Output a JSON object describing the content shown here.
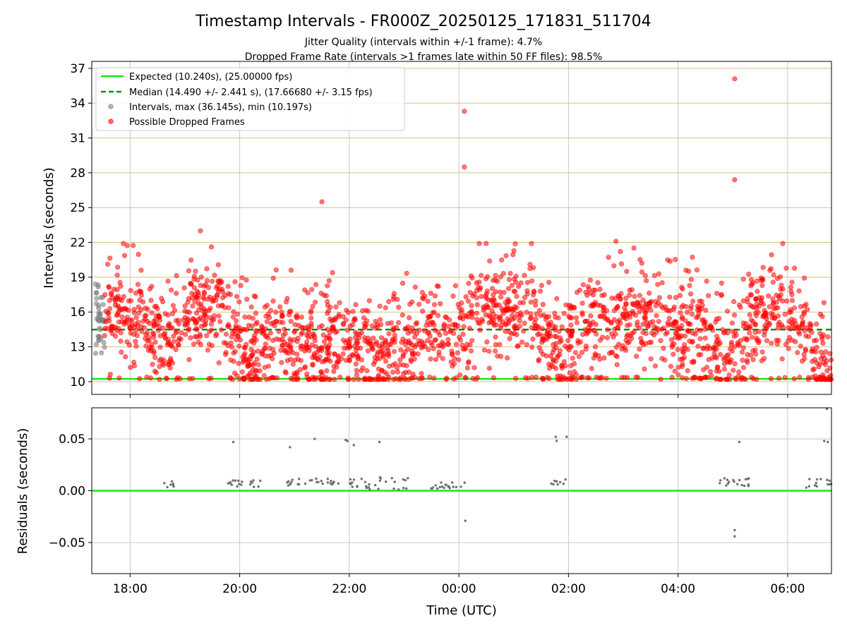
{
  "figure": {
    "title": "Timestamp Intervals - FR000Z_20250125_171831_511704",
    "subtitle_1": "Jitter Quality (intervals within +/-1 frame): 4.7%",
    "subtitle_2": "Dropped Frame Rate (intervals >1 frames late within 50 FF files): 98.5%"
  },
  "colors": {
    "expected": "#19e619",
    "median": "#138a13",
    "intervals": "#808080",
    "dropped": "#ff0000",
    "hgrid": "#d4c282",
    "vgrid": "#c8c8c8",
    "residual": "#6e6e6e"
  },
  "chart_data": [
    {
      "type": "scatter",
      "title": "Timestamp Intervals - FR000Z_20250125_171831_511704",
      "xlabel": "",
      "ylabel": "Intervals (seconds)",
      "ylim": [
        8.9,
        37.6
      ],
      "xlim": [
        "17:18",
        "06:48"
      ],
      "x_ticks": [
        "18:00",
        "20:00",
        "22:00",
        "00:00",
        "02:00",
        "04:00",
        "06:00"
      ],
      "y_ticks": [
        10,
        13,
        16,
        19,
        22,
        25,
        28,
        31,
        34,
        37
      ],
      "grid": true,
      "legend_position": "top-left",
      "expected": {
        "label": "Expected (10.240s), (25.00000 fps)",
        "value": 10.24
      },
      "median": {
        "label": "Median (14.490 +/- 2.441 s), (17.66680 +/- 3.15 fps)",
        "value": 14.49
      },
      "series": [
        {
          "name": "Intervals, max (36.145s), min (10.197s)",
          "x_range": [
            "17:22",
            "17:32"
          ],
          "y_range": [
            11.9,
            19.8
          ],
          "points_shown": 40
        },
        {
          "name": "Possible Dropped Frames",
          "x_range": [
            "17:32",
            "06:48"
          ],
          "y_range": [
            10.2,
            36.1
          ],
          "points_shown": 2200,
          "outliers": [
            {
              "x": "00:06",
              "y": 33.3
            },
            {
              "x": "00:06",
              "y": 28.5
            },
            {
              "x": "21:30",
              "y": 25.5
            },
            {
              "x": "19:17",
              "y": 23.0
            },
            {
              "x": "02:52",
              "y": 22.1
            },
            {
              "x": "05:02",
              "y": 36.1
            },
            {
              "x": "05:02",
              "y": 27.4
            }
          ],
          "level_profile": [
            {
              "x": "17:35",
              "y": 15.5
            },
            {
              "x": "17:50",
              "y": 16.5
            },
            {
              "x": "18:10",
              "y": 15.5
            },
            {
              "x": "18:40",
              "y": 13.5
            },
            {
              "x": "19:10",
              "y": 16.5
            },
            {
              "x": "19:40",
              "y": 16.5
            },
            {
              "x": "20:00",
              "y": 13.5
            },
            {
              "x": "20:20",
              "y": 12.0
            },
            {
              "x": "20:40",
              "y": 15.0
            },
            {
              "x": "21:00",
              "y": 13.0
            },
            {
              "x": "21:30",
              "y": 13.0
            },
            {
              "x": "22:00",
              "y": 13.0
            },
            {
              "x": "22:30",
              "y": 12.8
            },
            {
              "x": "23:00",
              "y": 13.0
            },
            {
              "x": "23:30",
              "y": 14.5
            },
            {
              "x": "23:55",
              "y": 13.5
            },
            {
              "x": "00:20",
              "y": 16.5
            },
            {
              "x": "00:50",
              "y": 16.5
            },
            {
              "x": "01:20",
              "y": 16.2
            },
            {
              "x": "01:40",
              "y": 13.0
            },
            {
              "x": "02:00",
              "y": 13.5
            },
            {
              "x": "02:20",
              "y": 15.5
            },
            {
              "x": "02:50",
              "y": 14.5
            },
            {
              "x": "03:20",
              "y": 15.5
            },
            {
              "x": "03:50",
              "y": 15.0
            },
            {
              "x": "04:10",
              "y": 14.8
            },
            {
              "x": "04:40",
              "y": 13.5
            },
            {
              "x": "05:00",
              "y": 12.5
            },
            {
              "x": "05:20",
              "y": 15.5
            },
            {
              "x": "05:50",
              "y": 16.0
            },
            {
              "x": "06:10",
              "y": 15.5
            },
            {
              "x": "06:30",
              "y": 12.5
            },
            {
              "x": "06:48",
              "y": 11.0
            }
          ]
        }
      ]
    },
    {
      "type": "scatter",
      "xlabel": "Time (UTC)",
      "ylabel": "Residuals (seconds)",
      "ylim": [
        -0.08,
        0.08
      ],
      "x_ticks": [
        "18:00",
        "20:00",
        "22:00",
        "00:00",
        "02:00",
        "04:00",
        "06:00"
      ],
      "y_ticks": [
        "0.05",
        "0.00",
        "−0.05"
      ],
      "grid": true,
      "zero_line": 0.0,
      "series": [
        {
          "name": "",
          "clusters": [
            {
              "x_range": [
                "18:32",
                "18:48"
              ],
              "y_range": [
                0.003,
                0.009
              ]
            },
            {
              "x_range": [
                "19:45",
                "20:25"
              ],
              "y_range": [
                0.003,
                0.01
              ]
            },
            {
              "x_range": [
                "20:50",
                "21:50"
              ],
              "y_range": [
                0.005,
                0.012
              ]
            },
            {
              "x_range": [
                "22:00",
                "23:05"
              ],
              "y_range": [
                0.001,
                0.013
              ]
            },
            {
              "x_range": [
                "23:25",
                "00:08"
              ],
              "y_range": [
                0.002,
                0.008
              ]
            },
            {
              "x_range": [
                "01:40",
                "02:00"
              ],
              "y_range": [
                0.004,
                0.011
              ]
            },
            {
              "x_range": [
                "04:45",
                "05:25"
              ],
              "y_range": [
                0.004,
                0.012
              ]
            },
            {
              "x_range": [
                "06:20",
                "06:48"
              ],
              "y_range": [
                0.003,
                0.012
              ]
            }
          ],
          "points": [
            {
              "x": "19:53",
              "y": 0.047
            },
            {
              "x": "20:55",
              "y": 0.042
            },
            {
              "x": "21:22",
              "y": 0.05
            },
            {
              "x": "21:56",
              "y": 0.049
            },
            {
              "x": "21:58",
              "y": 0.048
            },
            {
              "x": "22:05",
              "y": 0.044
            },
            {
              "x": "22:33",
              "y": 0.047
            },
            {
              "x": "00:07",
              "y": -0.029
            },
            {
              "x": "01:46",
              "y": 0.052
            },
            {
              "x": "01:47",
              "y": 0.048
            },
            {
              "x": "01:58",
              "y": 0.052
            },
            {
              "x": "05:02",
              "y": -0.038
            },
            {
              "x": "05:02",
              "y": -0.044
            },
            {
              "x": "05:07",
              "y": 0.047
            },
            {
              "x": "06:40",
              "y": 0.048
            },
            {
              "x": "06:44",
              "y": 0.047
            },
            {
              "x": "06:43",
              "y": 0.079
            }
          ]
        }
      ]
    }
  ]
}
